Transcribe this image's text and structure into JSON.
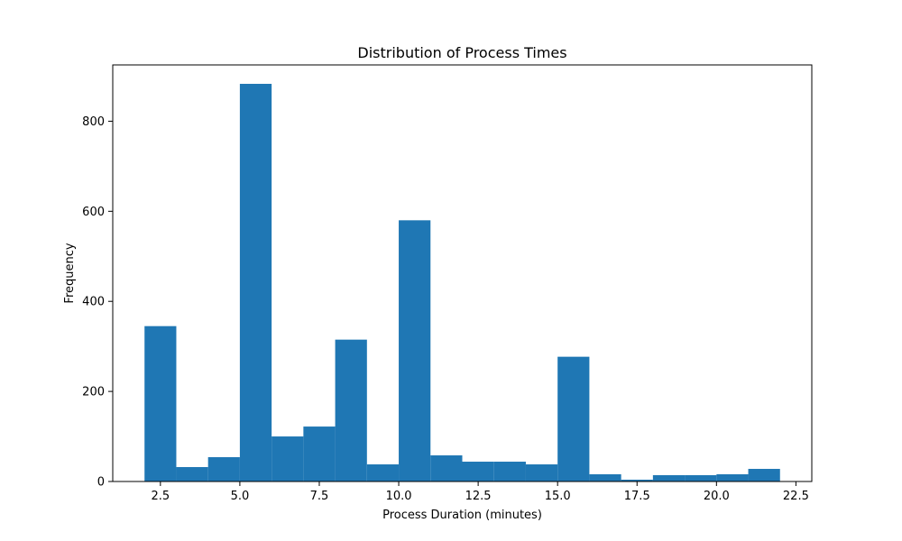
{
  "chart_data": {
    "type": "bar",
    "title": "Distribution of Process Times",
    "xlabel": "Process Duration (minutes)",
    "ylabel": "Frequency",
    "bin_edges": [
      2,
      3,
      4,
      5,
      6,
      7,
      8,
      9,
      10,
      11,
      12,
      13,
      14,
      15,
      16,
      17,
      18,
      19,
      20,
      21,
      22
    ],
    "values": [
      345,
      32,
      54,
      883,
      100,
      122,
      315,
      38,
      580,
      58,
      44,
      44,
      38,
      277,
      16,
      4,
      14,
      14,
      16,
      28
    ],
    "xlim": [
      1,
      23
    ],
    "ylim": [
      0,
      925
    ],
    "xticks": [
      2.5,
      5.0,
      7.5,
      10.0,
      12.5,
      15.0,
      17.5,
      20.0,
      22.5
    ],
    "xtick_labels": [
      "2.5",
      "5.0",
      "7.5",
      "10.0",
      "12.5",
      "15.0",
      "17.5",
      "20.0",
      "22.5"
    ],
    "yticks": [
      0,
      200,
      400,
      600,
      800
    ],
    "ytick_labels": [
      "0",
      "200",
      "400",
      "600",
      "800"
    ],
    "bar_color": "#1f77b4",
    "grid": false,
    "legend": "none"
  }
}
